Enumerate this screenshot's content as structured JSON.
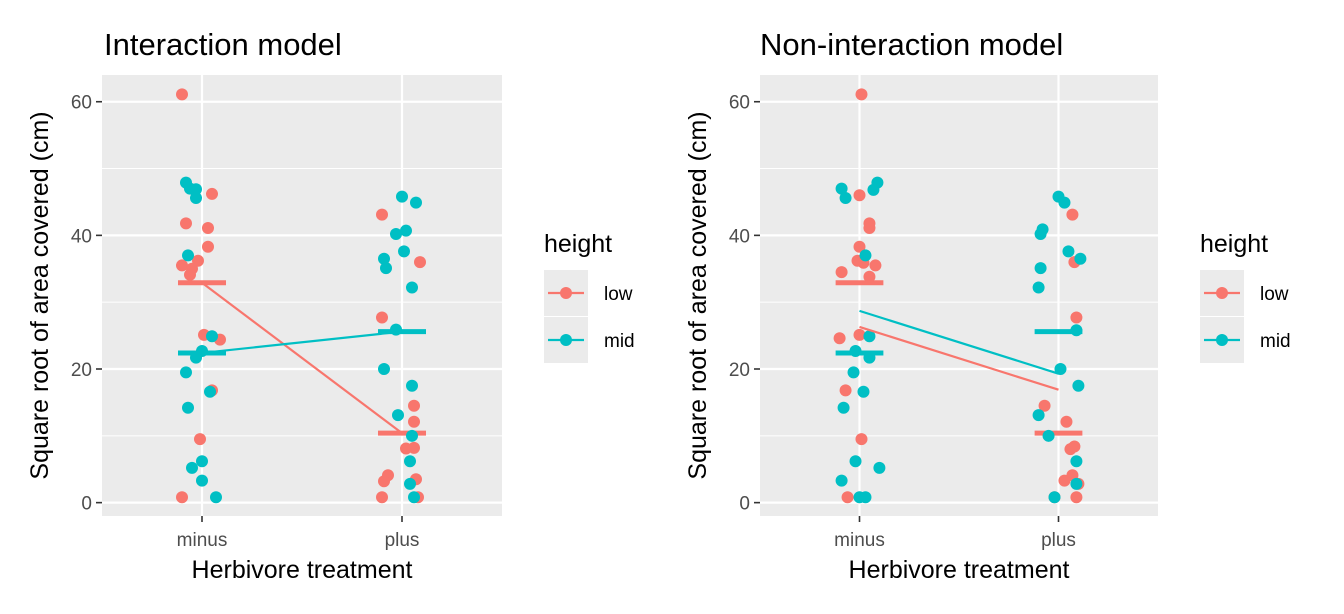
{
  "colors": {
    "low": "#F8766D",
    "mid": "#00BFC4"
  },
  "chart_data": [
    {
      "type": "scatter",
      "title": "Interaction model",
      "xlabel": "Herbivore treatment",
      "ylabel": "Square root of area covered (cm)",
      "categories": [
        "minus",
        "plus"
      ],
      "yticks": [
        0,
        20,
        40,
        60
      ],
      "ylim": [
        -2,
        64
      ],
      "grid": true,
      "legend": {
        "title": "height",
        "position": "right",
        "entries": [
          "low",
          "mid"
        ]
      },
      "series": [
        {
          "name": "low",
          "points": [
            {
              "x": "minus",
              "jitter": -0.1,
              "y": 61.1
            },
            {
              "x": "minus",
              "jitter": 0.05,
              "y": 46.2
            },
            {
              "x": "minus",
              "jitter": -0.08,
              "y": 41.8
            },
            {
              "x": "minus",
              "jitter": 0.03,
              "y": 41.1
            },
            {
              "x": "minus",
              "jitter": 0.03,
              "y": 38.3
            },
            {
              "x": "minus",
              "jitter": -0.02,
              "y": 36.2
            },
            {
              "x": "minus",
              "jitter": -0.1,
              "y": 35.5
            },
            {
              "x": "minus",
              "jitter": -0.05,
              "y": 35.0
            },
            {
              "x": "minus",
              "jitter": -0.06,
              "y": 34.1
            },
            {
              "x": "minus",
              "jitter": 0.01,
              "y": 25.1
            },
            {
              "x": "minus",
              "jitter": 0.09,
              "y": 24.4
            },
            {
              "x": "minus",
              "jitter": 0.05,
              "y": 16.8
            },
            {
              "x": "minus",
              "jitter": -0.01,
              "y": 9.5
            },
            {
              "x": "minus",
              "jitter": -0.1,
              "y": 0.8
            },
            {
              "x": "plus",
              "jitter": -0.1,
              "y": 43.1
            },
            {
              "x": "plus",
              "jitter": 0.09,
              "y": 36.0
            },
            {
              "x": "plus",
              "jitter": -0.1,
              "y": 27.7
            },
            {
              "x": "plus",
              "jitter": 0.06,
              "y": 14.5
            },
            {
              "x": "plus",
              "jitter": 0.06,
              "y": 12.1
            },
            {
              "x": "plus",
              "jitter": 0.02,
              "y": 8.1
            },
            {
              "x": "plus",
              "jitter": 0.06,
              "y": 8.2
            },
            {
              "x": "plus",
              "jitter": -0.07,
              "y": 4.1
            },
            {
              "x": "plus",
              "jitter": -0.09,
              "y": 3.2
            },
            {
              "x": "plus",
              "jitter": 0.07,
              "y": 3.5
            },
            {
              "x": "plus",
              "jitter": -0.1,
              "y": 0.8
            },
            {
              "x": "plus",
              "jitter": 0.08,
              "y": 0.8
            }
          ],
          "fitted": [
            32.9,
            10.4
          ]
        },
        {
          "name": "mid",
          "points": [
            {
              "x": "minus",
              "jitter": -0.08,
              "y": 47.9
            },
            {
              "x": "minus",
              "jitter": -0.06,
              "y": 47.0
            },
            {
              "x": "minus",
              "jitter": -0.03,
              "y": 46.9
            },
            {
              "x": "minus",
              "jitter": -0.03,
              "y": 45.6
            },
            {
              "x": "minus",
              "jitter": -0.07,
              "y": 37.0
            },
            {
              "x": "minus",
              "jitter": 0.05,
              "y": 24.9
            },
            {
              "x": "minus",
              "jitter": 0.0,
              "y": 22.7
            },
            {
              "x": "minus",
              "jitter": -0.03,
              "y": 21.7
            },
            {
              "x": "minus",
              "jitter": -0.08,
              "y": 19.5
            },
            {
              "x": "minus",
              "jitter": 0.04,
              "y": 16.6
            },
            {
              "x": "minus",
              "jitter": -0.07,
              "y": 14.2
            },
            {
              "x": "minus",
              "jitter": 0.0,
              "y": 6.2
            },
            {
              "x": "minus",
              "jitter": -0.05,
              "y": 5.2
            },
            {
              "x": "minus",
              "jitter": 0.0,
              "y": 3.3
            },
            {
              "x": "minus",
              "jitter": 0.07,
              "y": 0.8
            },
            {
              "x": "plus",
              "jitter": 0.0,
              "y": 45.8
            },
            {
              "x": "plus",
              "jitter": 0.07,
              "y": 44.9
            },
            {
              "x": "plus",
              "jitter": 0.02,
              "y": 40.7
            },
            {
              "x": "plus",
              "jitter": -0.03,
              "y": 40.2
            },
            {
              "x": "plus",
              "jitter": 0.01,
              "y": 37.6
            },
            {
              "x": "plus",
              "jitter": -0.09,
              "y": 36.5
            },
            {
              "x": "plus",
              "jitter": -0.08,
              "y": 35.1
            },
            {
              "x": "plus",
              "jitter": 0.05,
              "y": 32.2
            },
            {
              "x": "plus",
              "jitter": -0.03,
              "y": 25.9
            },
            {
              "x": "plus",
              "jitter": -0.09,
              "y": 20.0
            },
            {
              "x": "plus",
              "jitter": 0.05,
              "y": 17.5
            },
            {
              "x": "plus",
              "jitter": -0.02,
              "y": 13.1
            },
            {
              "x": "plus",
              "jitter": 0.05,
              "y": 10.0
            },
            {
              "x": "plus",
              "jitter": 0.04,
              "y": 6.2
            },
            {
              "x": "plus",
              "jitter": 0.04,
              "y": 2.8
            },
            {
              "x": "plus",
              "jitter": 0.06,
              "y": 0.8
            }
          ],
          "fitted": [
            22.4,
            25.6
          ]
        }
      ],
      "group_means": {
        "low": [
          32.9,
          10.4
        ],
        "mid": [
          22.4,
          25.6
        ]
      }
    },
    {
      "type": "scatter",
      "title": "Non-interaction model",
      "xlabel": "Herbivore treatment",
      "ylabel": "Square root of area covered (cm)",
      "categories": [
        "minus",
        "plus"
      ],
      "yticks": [
        0,
        20,
        40,
        60
      ],
      "ylim": [
        -2,
        64
      ],
      "grid": true,
      "legend": {
        "title": "height",
        "position": "right",
        "entries": [
          "low",
          "mid"
        ]
      },
      "series": [
        {
          "name": "low",
          "points": [
            {
              "x": "minus",
              "jitter": 0.01,
              "y": 61.1
            },
            {
              "x": "minus",
              "jitter": 0.0,
              "y": 46.0
            },
            {
              "x": "minus",
              "jitter": 0.05,
              "y": 41.8
            },
            {
              "x": "minus",
              "jitter": 0.05,
              "y": 41.1
            },
            {
              "x": "minus",
              "jitter": 0.0,
              "y": 38.3
            },
            {
              "x": "minus",
              "jitter": -0.01,
              "y": 36.2
            },
            {
              "x": "minus",
              "jitter": 0.02,
              "y": 35.9
            },
            {
              "x": "minus",
              "jitter": 0.08,
              "y": 35.5
            },
            {
              "x": "minus",
              "jitter": -0.09,
              "y": 34.5
            },
            {
              "x": "minus",
              "jitter": 0.05,
              "y": 33.8
            },
            {
              "x": "minus",
              "jitter": 0.0,
              "y": 25.1
            },
            {
              "x": "minus",
              "jitter": -0.1,
              "y": 24.6
            },
            {
              "x": "minus",
              "jitter": -0.07,
              "y": 16.8
            },
            {
              "x": "minus",
              "jitter": 0.01,
              "y": 9.5
            },
            {
              "x": "minus",
              "jitter": -0.06,
              "y": 0.8
            },
            {
              "x": "plus",
              "jitter": 0.07,
              "y": 43.1
            },
            {
              "x": "plus",
              "jitter": 0.08,
              "y": 36.0
            },
            {
              "x": "plus",
              "jitter": 0.09,
              "y": 27.7
            },
            {
              "x": "plus",
              "jitter": -0.07,
              "y": 14.5
            },
            {
              "x": "plus",
              "jitter": 0.04,
              "y": 12.1
            },
            {
              "x": "plus",
              "jitter": 0.08,
              "y": 8.4
            },
            {
              "x": "plus",
              "jitter": 0.06,
              "y": 8.0
            },
            {
              "x": "plus",
              "jitter": 0.07,
              "y": 4.1
            },
            {
              "x": "plus",
              "jitter": 0.03,
              "y": 3.3
            },
            {
              "x": "plus",
              "jitter": 0.1,
              "y": 2.8
            },
            {
              "x": "plus",
              "jitter": -0.02,
              "y": 0.8
            },
            {
              "x": "plus",
              "jitter": 0.09,
              "y": 0.8
            }
          ],
          "fitted": [
            26.3,
            16.9
          ]
        },
        {
          "name": "mid",
          "points": [
            {
              "x": "minus",
              "jitter": -0.09,
              "y": 47.0
            },
            {
              "x": "minus",
              "jitter": -0.07,
              "y": 45.6
            },
            {
              "x": "minus",
              "jitter": 0.09,
              "y": 47.9
            },
            {
              "x": "minus",
              "jitter": 0.07,
              "y": 46.8
            },
            {
              "x": "minus",
              "jitter": 0.03,
              "y": 37.0
            },
            {
              "x": "minus",
              "jitter": 0.05,
              "y": 24.9
            },
            {
              "x": "minus",
              "jitter": -0.02,
              "y": 22.7
            },
            {
              "x": "minus",
              "jitter": 0.05,
              "y": 21.7
            },
            {
              "x": "minus",
              "jitter": -0.03,
              "y": 19.5
            },
            {
              "x": "minus",
              "jitter": 0.02,
              "y": 16.6
            },
            {
              "x": "minus",
              "jitter": -0.08,
              "y": 14.2
            },
            {
              "x": "minus",
              "jitter": -0.02,
              "y": 6.2
            },
            {
              "x": "minus",
              "jitter": 0.1,
              "y": 5.2
            },
            {
              "x": "minus",
              "jitter": -0.09,
              "y": 3.3
            },
            {
              "x": "minus",
              "jitter": 0.0,
              "y": 0.8
            },
            {
              "x": "minus",
              "jitter": 0.03,
              "y": 0.8
            },
            {
              "x": "plus",
              "jitter": -0.09,
              "y": 40.2
            },
            {
              "x": "plus",
              "jitter": -0.08,
              "y": 40.9
            },
            {
              "x": "plus",
              "jitter": 0.0,
              "y": 45.8
            },
            {
              "x": "plus",
              "jitter": 0.03,
              "y": 44.9
            },
            {
              "x": "plus",
              "jitter": 0.05,
              "y": 37.6
            },
            {
              "x": "plus",
              "jitter": 0.11,
              "y": 36.5
            },
            {
              "x": "plus",
              "jitter": -0.09,
              "y": 35.1
            },
            {
              "x": "plus",
              "jitter": -0.1,
              "y": 32.2
            },
            {
              "x": "plus",
              "jitter": 0.09,
              "y": 25.8
            },
            {
              "x": "plus",
              "jitter": 0.01,
              "y": 20.0
            },
            {
              "x": "plus",
              "jitter": 0.1,
              "y": 17.5
            },
            {
              "x": "plus",
              "jitter": -0.1,
              "y": 13.1
            },
            {
              "x": "plus",
              "jitter": -0.05,
              "y": 10.0
            },
            {
              "x": "plus",
              "jitter": 0.09,
              "y": 6.2
            },
            {
              "x": "plus",
              "jitter": 0.09,
              "y": 2.8
            },
            {
              "x": "plus",
              "jitter": -0.02,
              "y": 0.8
            }
          ],
          "fitted": [
            28.7,
            19.3
          ]
        }
      ],
      "group_means": {
        "low": [
          32.9,
          10.4
        ],
        "mid": [
          22.4,
          25.6
        ]
      }
    }
  ]
}
